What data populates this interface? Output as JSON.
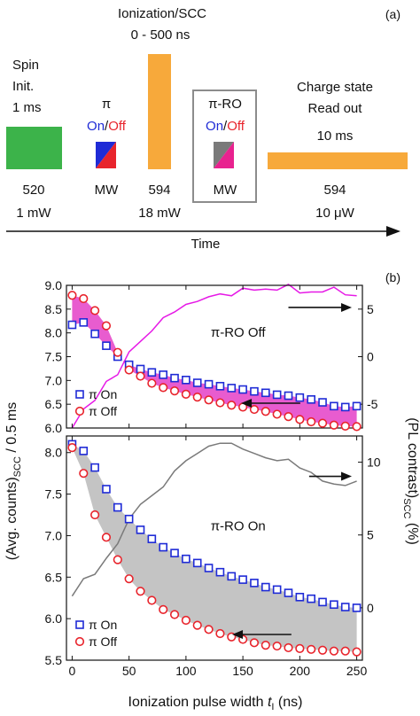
{
  "panel_a": {
    "label": "(a)",
    "time_label": "Time",
    "colors": {
      "laser520": "#3cb34a",
      "laser594": "#f7a93b",
      "on": "#1f2bd6",
      "off": "#e8242c",
      "pi_ro_on": "#e8228f",
      "pi_ro_off": "#7a7a7a",
      "box": "#8c8c8c"
    },
    "blocks": [
      {
        "top_lines": [
          "Spin",
          "Init.",
          "1 ms"
        ],
        "bottom_lines": [
          "520",
          "1 mW"
        ]
      },
      {
        "top_pi": "π",
        "on": "On",
        "sep": "/",
        "off": "Off",
        "bottom_lines": [
          "MW"
        ]
      },
      {
        "top_lines": [
          "Ionization/SCC",
          "0 - 500 ns"
        ],
        "bottom_lines": [
          "594",
          "18 mW"
        ]
      },
      {
        "top_pi": "π-RO",
        "on": "On",
        "sep": "/",
        "off": "Off",
        "bottom_lines": [
          "MW"
        ]
      },
      {
        "top_lines": [
          "Charge state",
          "Read out",
          "10 ms"
        ],
        "bottom_lines": [
          "594",
          "10 μW"
        ]
      }
    ]
  },
  "panel_b": {
    "label": "(b)",
    "xlabel_main": "Ionization pulse width ",
    "xlabel_var": "t",
    "xlabel_sub": "I",
    "xlabel_unit": " (ns)",
    "ylabel_left_main": "(Avg. counts)",
    "ylabel_left_sub": "SCC",
    "ylabel_left_rest": " / 0.5 ms",
    "ylabel_right_main": "(PL contrast)",
    "ylabel_right_sub": "SCC",
    "ylabel_right_rest": " (%)"
  },
  "chart_data": [
    {
      "type": "scatter",
      "annotation": "π-RO Off",
      "legend": [
        "π On",
        "π Off"
      ],
      "legend_placement": "bottom-left",
      "xlim": [
        -5,
        255
      ],
      "ylim": [
        6.0,
        9.0
      ],
      "y2lim": [
        -7.5,
        7.5
      ],
      "x_ticks": [
        0,
        50,
        100,
        150,
        200,
        250
      ],
      "y_ticks": [
        "6.0",
        "6.5",
        "7.0",
        "7.5",
        "8.0",
        "8.5",
        "9.0"
      ],
      "y2_ticks": [
        "-5",
        "0",
        "5"
      ],
      "x": [
        0,
        10,
        20,
        30,
        40,
        50,
        60,
        70,
        80,
        90,
        100,
        110,
        120,
        130,
        140,
        150,
        160,
        170,
        180,
        190,
        200,
        210,
        220,
        230,
        240,
        250
      ],
      "series": [
        {
          "name": "π On",
          "marker": "square",
          "color": "#1f2bd6",
          "values": [
            8.17,
            8.22,
            7.98,
            7.73,
            7.5,
            7.33,
            7.24,
            7.17,
            7.12,
            7.05,
            7.01,
            6.95,
            6.92,
            6.88,
            6.84,
            6.81,
            6.77,
            6.74,
            6.7,
            6.68,
            6.64,
            6.6,
            6.54,
            6.46,
            6.44,
            6.46
          ]
        },
        {
          "name": "π Off",
          "marker": "circle",
          "color": "#e8242c",
          "values": [
            8.79,
            8.72,
            8.47,
            8.15,
            7.59,
            7.22,
            7.09,
            6.94,
            6.85,
            6.78,
            6.71,
            6.65,
            6.59,
            6.53,
            6.48,
            6.44,
            6.39,
            6.35,
            6.29,
            6.24,
            6.18,
            6.13,
            6.1,
            6.06,
            6.04,
            6.03
          ]
        },
        {
          "name": "PL contrast",
          "axis": "right",
          "color": "#e619e6",
          "values": [
            -7.5,
            -5.5,
            -4.6,
            -2.6,
            -1.9,
            0.5,
            1.6,
            2.7,
            4.1,
            4.7,
            5.5,
            5.8,
            6.3,
            6.6,
            6.4,
            7.2,
            7.0,
            7.1,
            7.0,
            7.6,
            6.7,
            6.8,
            6.8,
            7.3,
            6.5,
            6.4
          ]
        }
      ],
      "fill_color": "#e85ccf"
    },
    {
      "type": "scatter",
      "annotation": "π-RO On",
      "legend": [
        "π On",
        "π Off"
      ],
      "legend_placement": "bottom-left",
      "xlim": [
        -5,
        255
      ],
      "ylim": [
        5.5,
        8.2
      ],
      "y2lim": [
        -3.6,
        11.8
      ],
      "x_ticks": [
        0,
        50,
        100,
        150,
        200,
        250
      ],
      "y_ticks": [
        "5.5",
        "6.0",
        "6.5",
        "7.0",
        "7.5",
        "8.0"
      ],
      "y2_ticks": [
        "0",
        "5",
        "10"
      ],
      "x": [
        0,
        10,
        20,
        30,
        40,
        50,
        60,
        70,
        80,
        90,
        100,
        110,
        120,
        130,
        140,
        150,
        160,
        170,
        180,
        190,
        200,
        210,
        220,
        230,
        240,
        250
      ],
      "series": [
        {
          "name": "π On",
          "marker": "square",
          "color": "#1f2bd6",
          "values": [
            8.1,
            8.02,
            7.82,
            7.56,
            7.34,
            7.2,
            7.07,
            6.96,
            6.86,
            6.79,
            6.72,
            6.67,
            6.61,
            6.56,
            6.51,
            6.47,
            6.43,
            6.38,
            6.35,
            6.31,
            6.26,
            6.24,
            6.2,
            6.17,
            6.14,
            6.13
          ]
        },
        {
          "name": "π Off",
          "marker": "circle",
          "color": "#e8242c",
          "values": [
            8.06,
            7.75,
            7.25,
            6.98,
            6.71,
            6.48,
            6.33,
            6.22,
            6.11,
            6.05,
            5.98,
            5.92,
            5.87,
            5.82,
            5.78,
            5.75,
            5.71,
            5.68,
            5.67,
            5.65,
            5.64,
            5.63,
            5.62,
            5.61,
            5.61,
            5.6
          ]
        },
        {
          "name": "PL contrast",
          "axis": "right",
          "color": "#7a7a7a",
          "values": [
            0.8,
            2.0,
            2.3,
            3.4,
            4.4,
            6.1,
            7.1,
            7.7,
            8.3,
            9.4,
            10.1,
            10.6,
            11.1,
            11.3,
            11.3,
            10.9,
            10.6,
            10.3,
            10.1,
            10.2,
            9.6,
            9.3,
            8.7,
            8.5,
            8.4,
            8.7
          ]
        }
      ],
      "fill_color": "#c4c4c4"
    }
  ]
}
